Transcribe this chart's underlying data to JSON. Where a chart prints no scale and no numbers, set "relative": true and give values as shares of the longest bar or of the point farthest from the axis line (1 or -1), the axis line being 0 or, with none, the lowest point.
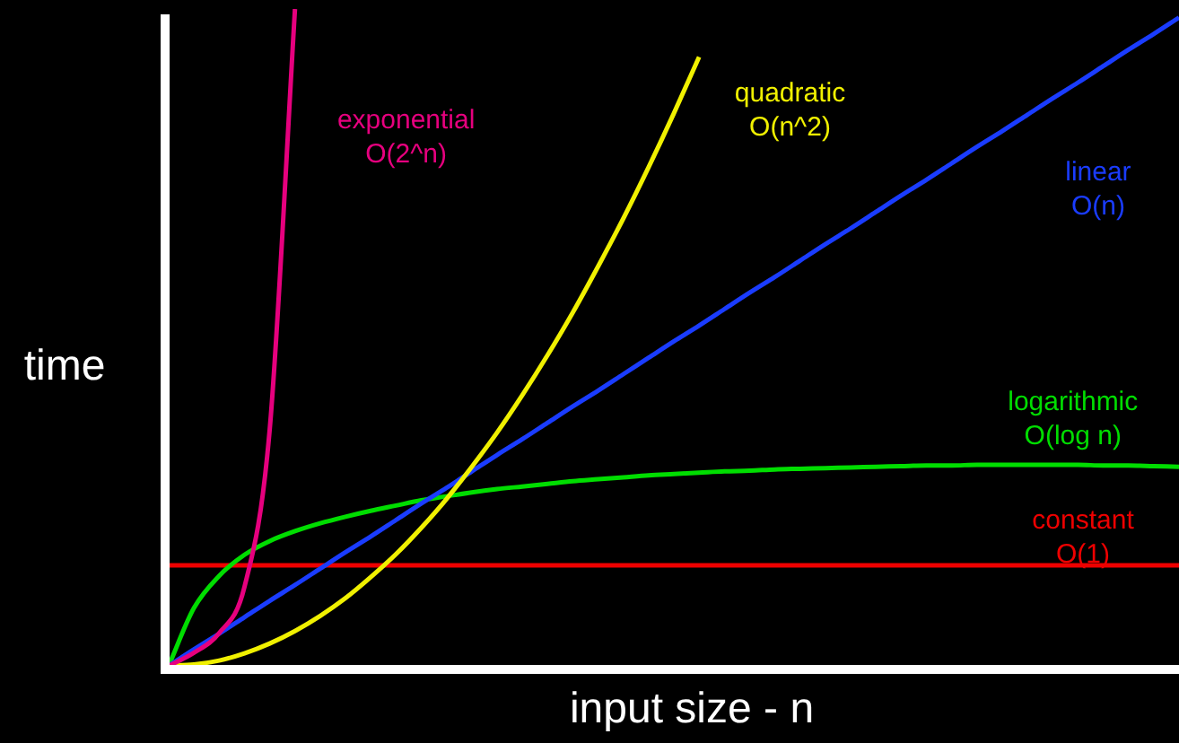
{
  "chart_data": {
    "type": "line",
    "relative": true,
    "xlabel": "input size - n",
    "ylabel": "time",
    "legend": false,
    "marker": "none",
    "categories": [
      null,
      null,
      null,
      null,
      null,
      null,
      null,
      null,
      null,
      null,
      null,
      null,
      null,
      null,
      null,
      null,
      null,
      null,
      null,
      null,
      null,
      null,
      null,
      null,
      null,
      null,
      null,
      null,
      null,
      null,
      null,
      null,
      null,
      null,
      null,
      null,
      null,
      null,
      null,
      null,
      null
    ],
    "series": [
      {
        "name": "exponential O(2^n)",
        "color": "#e6007e",
        "values": [
          0,
          0.02,
          0.05,
          0.12,
          0.36,
          1,
          null,
          null,
          null,
          null,
          null,
          null,
          null,
          null,
          null,
          null,
          null,
          null,
          null,
          null,
          null,
          null,
          null,
          null,
          null,
          null,
          null,
          null,
          null,
          null,
          null,
          null,
          null,
          null,
          null,
          null,
          null,
          null,
          null,
          null,
          null
        ]
      },
      {
        "name": "quadratic O(n^2)",
        "color": "#f0f000",
        "values": [
          0,
          0.002,
          0.008,
          0.019,
          0.034,
          0.053,
          0.076,
          0.103,
          0.135,
          0.17,
          0.21,
          0.254,
          0.303,
          0.355,
          0.412,
          0.473,
          0.538,
          0.608,
          0.681,
          0.759,
          0.841,
          0.927,
          null,
          null,
          null,
          null,
          null,
          null,
          null,
          null,
          null,
          null,
          null,
          null,
          null,
          null,
          null,
          null,
          null,
          null,
          null
        ]
      },
      {
        "name": "linear O(n)",
        "color": "#1a3cff",
        "values": [
          0,
          0.025,
          0.049,
          0.074,
          0.099,
          0.123,
          0.148,
          0.173,
          0.197,
          0.222,
          0.247,
          0.271,
          0.296,
          0.321,
          0.345,
          0.37,
          0.395,
          0.419,
          0.444,
          0.469,
          0.494,
          0.518,
          0.543,
          0.568,
          0.592,
          0.617,
          0.642,
          0.666,
          0.691,
          0.716,
          0.74,
          0.765,
          0.79,
          0.814,
          0.839,
          0.864,
          0.888,
          0.913,
          0.938,
          0.962,
          0.987
        ]
      },
      {
        "name": "logarithmic O(log n)",
        "color": "#00dd00",
        "values": [
          0,
          0.088,
          0.137,
          0.169,
          0.19,
          0.205,
          0.217,
          0.227,
          0.236,
          0.244,
          0.252,
          0.258,
          0.264,
          0.269,
          0.273,
          0.277,
          0.281,
          0.284,
          0.287,
          0.29,
          0.292,
          0.294,
          0.296,
          0.297,
          0.299,
          0.3,
          0.301,
          0.302,
          0.303,
          0.304,
          0.305,
          0.305,
          0.306,
          0.306,
          0.306,
          0.306,
          0.306,
          0.305,
          0.305,
          0.304,
          0.303
        ]
      },
      {
        "name": "constant O(1)",
        "color": "#ee0000",
        "values": [
          0.153,
          0.153,
          0.153,
          0.153,
          0.153,
          0.153,
          0.153,
          0.153,
          0.153,
          0.153,
          0.153,
          0.153,
          0.153,
          0.153,
          0.153,
          0.153,
          0.153,
          0.153,
          0.153,
          0.153,
          0.153,
          0.153,
          0.153,
          0.153,
          0.153,
          0.153,
          0.153,
          0.153,
          0.153,
          0.153,
          0.153,
          0.153,
          0.153,
          0.153,
          0.153,
          0.153,
          0.153,
          0.153,
          0.153,
          0.153,
          0.153
        ]
      }
    ]
  }
}
